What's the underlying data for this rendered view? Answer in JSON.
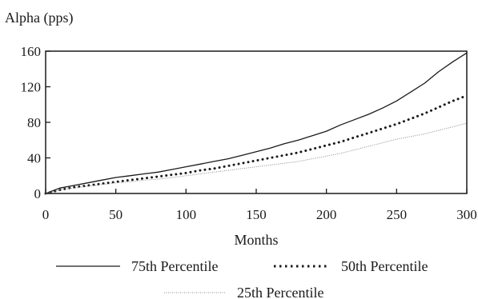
{
  "chart_data": {
    "type": "line",
    "ylabel": "Alpha (pps)",
    "xlabel": "Months",
    "xlim": [
      0,
      300
    ],
    "ylim": [
      0,
      160
    ],
    "x_ticks": [
      "0",
      "50",
      "100",
      "150",
      "200",
      "250",
      "300"
    ],
    "y_ticks": [
      "0",
      "40",
      "80",
      "120",
      "160"
    ],
    "grid": false,
    "legend_position": "bottom",
    "x": [
      0,
      10,
      20,
      30,
      40,
      50,
      60,
      70,
      80,
      90,
      100,
      110,
      120,
      130,
      140,
      150,
      160,
      170,
      180,
      190,
      200,
      210,
      220,
      230,
      240,
      250,
      260,
      270,
      280,
      290,
      300
    ],
    "series": [
      {
        "name": "75th Percentile",
        "style": "solid",
        "color": "#1a1a1a",
        "values": [
          0,
          6,
          9,
          12,
          15,
          18,
          20,
          22,
          24,
          27,
          30,
          33,
          36,
          39,
          43,
          47,
          51,
          56,
          60,
          65,
          70,
          77,
          83,
          89,
          96,
          104,
          114,
          124,
          137,
          148,
          158
        ]
      },
      {
        "name": "50th Percentile",
        "style": "dotted",
        "color": "#1a1a1a",
        "values": [
          0,
          4,
          7,
          9,
          11,
          13,
          15,
          17,
          19,
          21,
          23,
          26,
          28,
          31,
          34,
          37,
          40,
          43,
          46,
          50,
          54,
          58,
          63,
          68,
          73,
          78,
          84,
          90,
          97,
          104,
          110
        ]
      },
      {
        "name": "25th Percentile",
        "style": "fine-dotted",
        "color": "#8a8a8a",
        "values": [
          0,
          4,
          6,
          8,
          10,
          12,
          13,
          15,
          16,
          18,
          20,
          22,
          24,
          26,
          28,
          30,
          32,
          34,
          36,
          39,
          42,
          45,
          49,
          53,
          57,
          61,
          64,
          67,
          71,
          75,
          79
        ]
      }
    ]
  }
}
